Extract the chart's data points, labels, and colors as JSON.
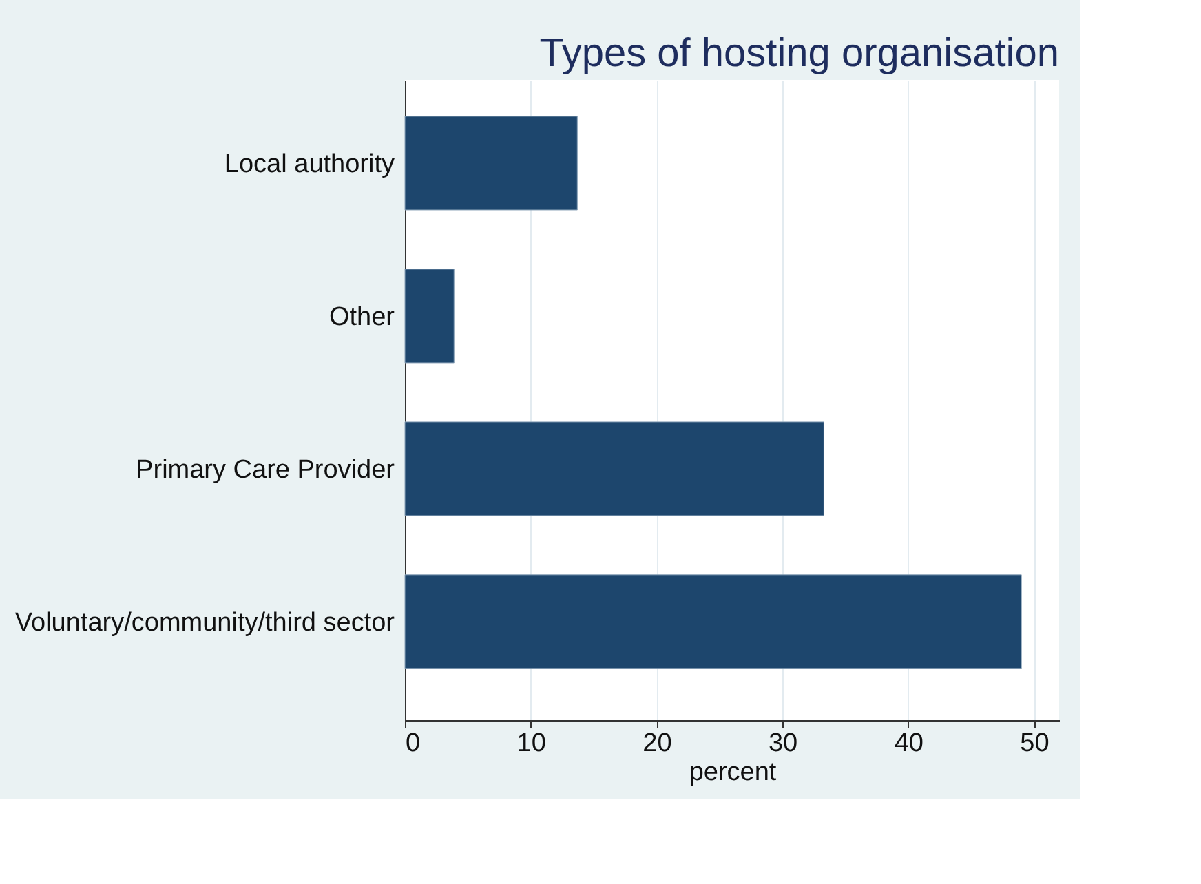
{
  "chart_data": {
    "type": "bar",
    "orientation": "horizontal",
    "title": "Types of hosting organisation",
    "xlabel": "percent",
    "categories": [
      "Local authority",
      "Other",
      "Primary Care Provider",
      "Voluntary/community/third sector"
    ],
    "values": [
      13.7,
      3.9,
      33.3,
      49.0
    ],
    "color": "#1d466d",
    "xlim": [
      0,
      52
    ],
    "xticks": [
      0,
      10,
      20,
      30,
      40,
      50
    ],
    "grid": "x"
  }
}
